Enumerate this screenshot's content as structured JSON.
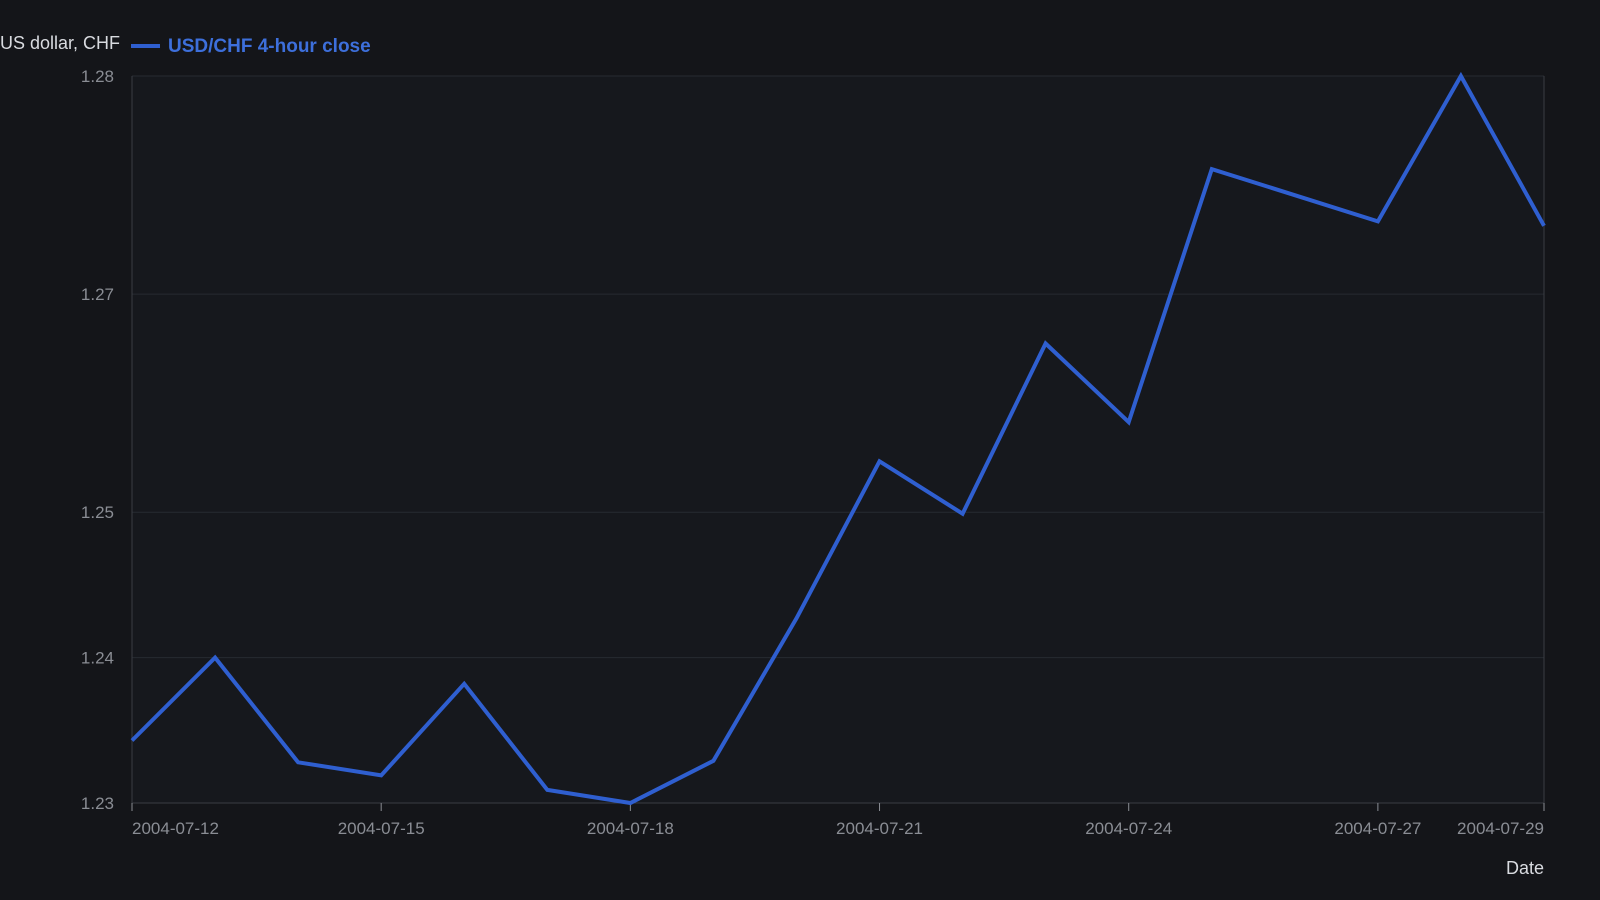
{
  "chart_data": {
    "type": "line",
    "title": "",
    "ylabel": "US dollar, CHF",
    "xlabel": "Date",
    "x": [
      "2004-07-12",
      "2004-07-13",
      "2004-07-14",
      "2004-07-15",
      "2004-07-16",
      "2004-07-17",
      "2004-07-18",
      "2004-07-19",
      "2004-07-20",
      "2004-07-21",
      "2004-07-22",
      "2004-07-23",
      "2004-07-24",
      "2004-07-25",
      "2004-07-26",
      "2004-07-27",
      "2004-07-28",
      "2004-07-29"
    ],
    "series": [
      {
        "name": "USD/CHF 4-hour close",
        "color": "#2f5fd0",
        "values": [
          1.2343,
          1.24,
          1.2328,
          1.2319,
          1.2382,
          1.2309,
          1.23,
          1.2329,
          1.2427,
          1.2535,
          1.2499,
          1.2616,
          1.2562,
          1.2736,
          1.2718,
          1.27,
          1.28,
          1.2697
        ]
      }
    ],
    "y_ticks": [
      "1.23",
      "1.24",
      "1.25",
      "1.27",
      "1.28"
    ],
    "y_tick_values": [
      1.23,
      1.24,
      1.25,
      1.265,
      1.28
    ],
    "x_ticks": [
      "2004-07-12",
      "2004-07-15",
      "2004-07-18",
      "2004-07-21",
      "2004-07-24",
      "2004-07-27",
      "2004-07-29"
    ],
    "ylim": [
      1.23,
      1.28
    ],
    "xlim": [
      "2004-07-12",
      "2004-07-29"
    ],
    "grid": true,
    "legend_position": "top-left",
    "colors": {
      "background": "#141519",
      "plot_background": "#16181d",
      "grid": "#272a31",
      "axis": "#3a3d44"
    }
  }
}
